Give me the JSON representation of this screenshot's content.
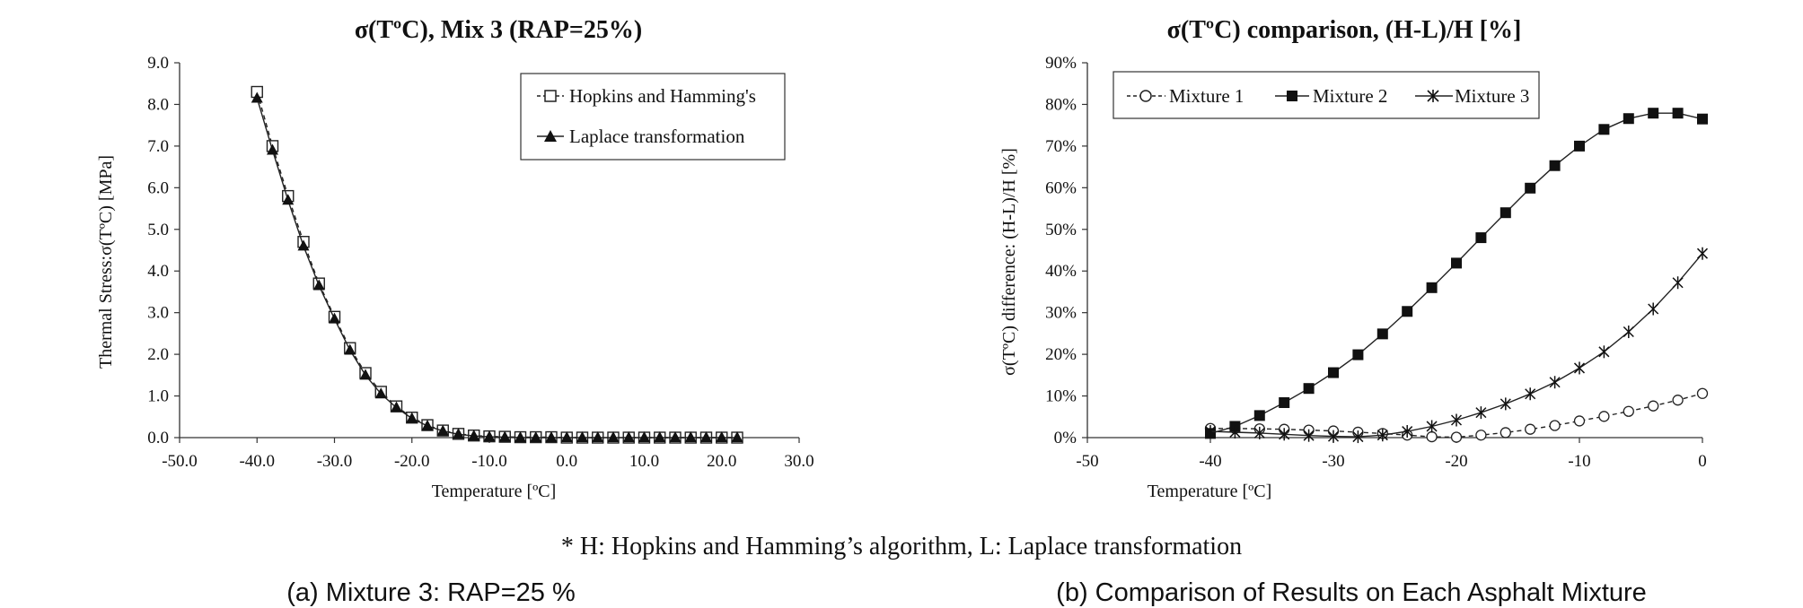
{
  "chart_data": [
    {
      "type": "line",
      "title": "σ(TºC), Mix 3 (RAP=25%)",
      "xlabel": "Temperature [ºC]",
      "ylabel": "Thermal Stress:σ(TºC) [MPa]",
      "xlim": [
        -50,
        30
      ],
      "ylim": [
        0,
        9
      ],
      "xticks": [
        -50,
        -40,
        -30,
        -20,
        -10,
        0,
        10,
        20,
        30
      ],
      "xtick_labels": [
        "-50.0",
        "-40.0",
        "-30.0",
        "-20.0",
        "-10.0",
        "0.0",
        "10.0",
        "20.0",
        "30.0"
      ],
      "yticks": [
        0,
        1,
        2,
        3,
        4,
        5,
        6,
        7,
        8,
        9
      ],
      "ytick_labels": [
        "0.0",
        "1.0",
        "2.0",
        "3.0",
        "4.0",
        "5.0",
        "6.0",
        "7.0",
        "8.0",
        "9.0"
      ],
      "grid": false,
      "legend_position": "top-right",
      "x": [
        -40,
        -38,
        -36,
        -34,
        -32,
        -30,
        -28,
        -26,
        -24,
        -22,
        -20,
        -18,
        -16,
        -14,
        -12,
        -10,
        -8,
        -6,
        -4,
        -2,
        0,
        2,
        4,
        6,
        8,
        10,
        12,
        14,
        16,
        18,
        20,
        22
      ],
      "series": [
        {
          "name": "Hopkins and Hamming's",
          "marker": "open-square",
          "line": "dashed",
          "values": [
            8.3,
            7.0,
            5.8,
            4.7,
            3.7,
            2.9,
            2.15,
            1.55,
            1.1,
            0.75,
            0.48,
            0.3,
            0.17,
            0.09,
            0.05,
            0.03,
            0.02,
            0.01,
            0.01,
            0.01,
            0.0,
            0.0,
            0.0,
            0.0,
            0.0,
            0.0,
            0.0,
            0.0,
            0.0,
            0.0,
            0.0,
            0.0
          ]
        },
        {
          "name": "Laplace transformation",
          "marker": "filled-triangle",
          "line": "solid",
          "values": [
            8.15,
            6.9,
            5.7,
            4.6,
            3.65,
            2.85,
            2.1,
            1.5,
            1.05,
            0.72,
            0.46,
            0.28,
            0.16,
            0.08,
            0.04,
            0.02,
            0.01,
            0.0,
            0.0,
            0.0,
            0.0,
            0.0,
            0.0,
            0.0,
            0.0,
            0.0,
            0.0,
            0.0,
            0.0,
            0.0,
            0.0,
            0.0
          ]
        }
      ]
    },
    {
      "type": "line",
      "title": "σ(TºC) comparison, (H-L)/H [%]",
      "xlabel": "Temperature [ºC]",
      "ylabel": "σ(TºC) difference: (H-L)/H [%]",
      "xlim": [
        -50,
        0
      ],
      "ylim": [
        0,
        90
      ],
      "xticks": [
        -50,
        -40,
        -30,
        -20,
        -10,
        0
      ],
      "xtick_labels": [
        "-50",
        "-40",
        "-30",
        "-20",
        "-10",
        "0"
      ],
      "yticks": [
        0,
        10,
        20,
        30,
        40,
        50,
        60,
        70,
        80,
        90
      ],
      "ytick_labels": [
        "0%",
        "10%",
        "20%",
        "30%",
        "40%",
        "50%",
        "60%",
        "70%",
        "80%",
        "90%"
      ],
      "grid": false,
      "legend_position": "top-left",
      "x": [
        -40,
        -38,
        -36,
        -34,
        -32,
        -30,
        -28,
        -26,
        -24,
        -22,
        -20,
        -18,
        -16,
        -14,
        -12,
        -10,
        -8,
        -6,
        -4,
        -2,
        0
      ],
      "series": [
        {
          "name": "Mixture 1",
          "marker": "open-circle",
          "line": "dashed",
          "values": [
            2.2,
            2.2,
            2.1,
            2.0,
            1.8,
            1.6,
            1.3,
            1.0,
            0.6,
            0.2,
            0.1,
            0.6,
            1.2,
            2.0,
            2.9,
            4.0,
            5.1,
            6.3,
            7.6,
            9.0,
            10.6
          ]
        },
        {
          "name": "Mixture 2",
          "marker": "filled-square",
          "line": "solid",
          "values": [
            1.0,
            2.7,
            5.3,
            8.4,
            11.8,
            15.6,
            19.9,
            24.9,
            30.3,
            36.0,
            41.9,
            48.0,
            54.0,
            59.9,
            65.3,
            70.0,
            74.0,
            76.6,
            77.9,
            77.9,
            76.5
          ]
        },
        {
          "name": "Mixture 3",
          "marker": "star",
          "line": "solid",
          "values": [
            1.5,
            1.3,
            1.1,
            0.8,
            0.5,
            0.3,
            0.2,
            0.6,
            1.5,
            2.7,
            4.2,
            6.0,
            8.1,
            10.5,
            13.3,
            16.7,
            20.6,
            25.4,
            30.9,
            37.2,
            44.2
          ]
        }
      ]
    }
  ],
  "note": "* H: Hopkins and Hamming’s algorithm, L: Laplace transformation",
  "captions": [
    "(a) Mixture 3: RAP=25 %",
    "(b) Comparison of Results on Each Asphalt Mixture"
  ]
}
